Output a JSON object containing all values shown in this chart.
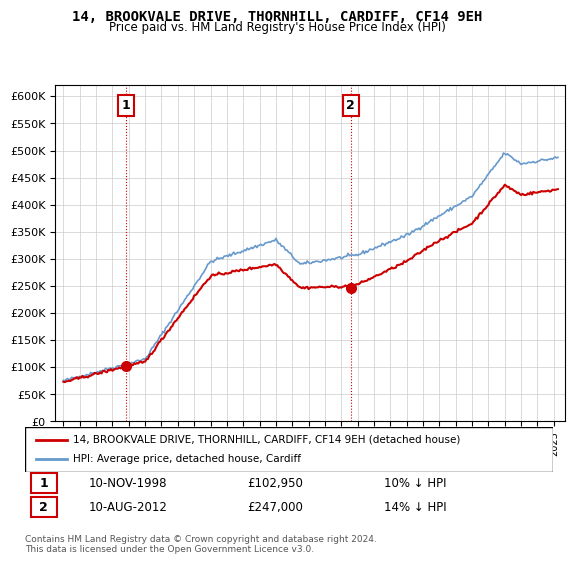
{
  "title": "14, BROOKVALE DRIVE, THORNHILL, CARDIFF, CF14 9EH",
  "subtitle": "Price paid vs. HM Land Registry's House Price Index (HPI)",
  "ylim": [
    0,
    620000
  ],
  "yticks": [
    0,
    50000,
    100000,
    150000,
    200000,
    250000,
    300000,
    350000,
    400000,
    450000,
    500000,
    550000,
    600000
  ],
  "sale1_date": "10-NOV-1998",
  "sale1_price": 102950,
  "sale1_label": "1",
  "sale1_hpi_pct": "10% ↓ HPI",
  "sale2_date": "10-AUG-2012",
  "sale2_price": 247000,
  "sale2_label": "2",
  "sale2_hpi_pct": "14% ↓ HPI",
  "legend_house": "14, BROOKVALE DRIVE, THORNHILL, CARDIFF, CF14 9EH (detached house)",
  "legend_hpi": "HPI: Average price, detached house, Cardiff",
  "footnote": "Contains HM Land Registry data © Crown copyright and database right 2024.\nThis data is licensed under the Open Government Licence v3.0.",
  "house_color": "#cc0000",
  "hpi_color": "#6699cc",
  "background_color": "#ffffff",
  "plot_bg_color": "#ffffff",
  "grid_color": "#cccccc",
  "sale_marker_color": "#cc0000",
  "vline_color": "#cc0000"
}
